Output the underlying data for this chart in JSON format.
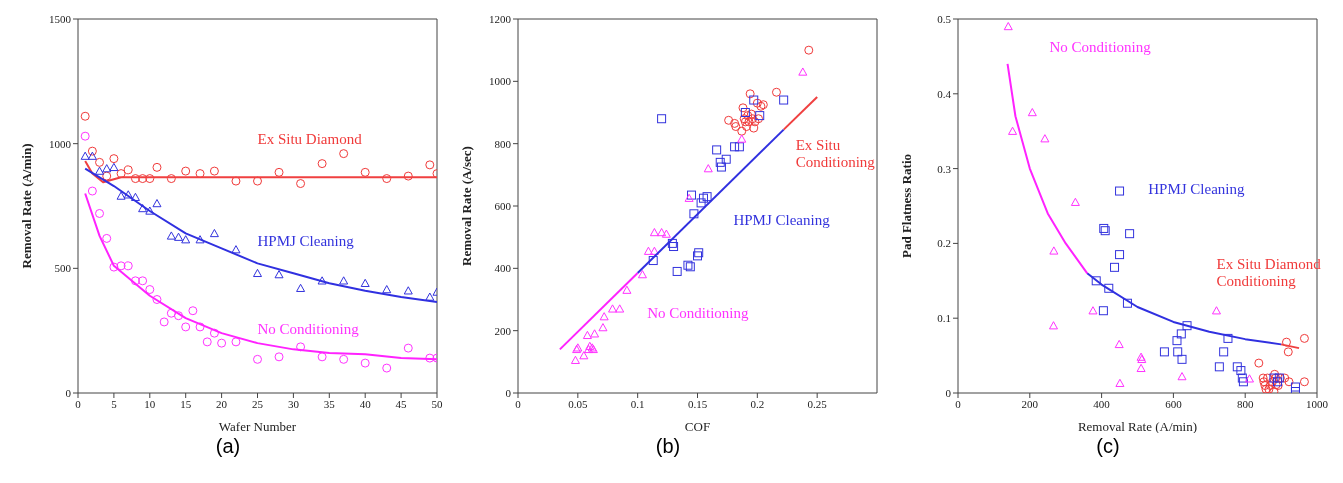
{
  "chart_data": [
    {
      "type": "scatter",
      "title": "(a)",
      "xlabel": "Wafer Number",
      "ylabel": "Removal Rate (A/min)",
      "xlim": [
        0,
        50
      ],
      "xticks": [
        0,
        5,
        10,
        15,
        20,
        25,
        30,
        35,
        40,
        45,
        50
      ],
      "ylim": [
        0,
        1500
      ],
      "yticks": [
        0,
        500,
        1000,
        1500
      ],
      "series": [
        {
          "name": "Ex Situ Diamond",
          "color": "#f03a3a",
          "marker": "circle",
          "x": [
            1,
            2,
            3,
            4,
            5,
            6,
            7,
            8,
            9,
            10,
            11,
            13,
            15,
            17,
            19,
            22,
            25,
            28,
            31,
            34,
            37,
            40,
            43,
            46,
            49,
            50
          ],
          "values": [
            1110,
            970,
            925,
            870,
            940,
            880,
            895,
            860,
            860,
            860,
            905,
            860,
            890,
            880,
            890,
            850,
            850,
            885,
            840,
            920,
            960,
            885,
            860,
            870,
            915,
            880
          ]
        },
        {
          "name": "HPMJ Cleaning",
          "color": "#3333dd",
          "marker": "triangle",
          "x": [
            1,
            2,
            3,
            4,
            5,
            6,
            7,
            8,
            9,
            10,
            11,
            13,
            14,
            15,
            17,
            19,
            22,
            25,
            28,
            31,
            34,
            37,
            40,
            43,
            46,
            49,
            50
          ],
          "values": [
            950,
            950,
            890,
            900,
            905,
            790,
            795,
            785,
            740,
            730,
            760,
            630,
            625,
            615,
            615,
            640,
            575,
            480,
            475,
            420,
            450,
            450,
            440,
            415,
            410,
            385,
            405
          ]
        },
        {
          "name": "No Conditioning",
          "color": "#ff33ff",
          "marker": "circle",
          "x": [
            1,
            2,
            3,
            4,
            5,
            6,
            7,
            8,
            9,
            10,
            11,
            12,
            13,
            14,
            15,
            16,
            17,
            18,
            19,
            20,
            22,
            25,
            28,
            31,
            34,
            37,
            40,
            43,
            46,
            49,
            50
          ],
          "values": [
            1030,
            810,
            720,
            620,
            505,
            510,
            510,
            450,
            450,
            415,
            375,
            285,
            320,
            310,
            265,
            330,
            265,
            205,
            240,
            200,
            205,
            135,
            145,
            185,
            145,
            135,
            120,
            100,
            180,
            140,
            140
          ]
        },
        {
          "type": "line",
          "color": "#f04040",
          "x": [
            1,
            2,
            3.5,
            6,
            10,
            20,
            30,
            40,
            50
          ],
          "values": [
            930,
            880,
            845,
            865,
            865,
            865,
            865,
            865,
            865
          ]
        },
        {
          "type": "line",
          "color": "#3030e0",
          "x": [
            1,
            5,
            10,
            15,
            20,
            25,
            30,
            35,
            40,
            45,
            50
          ],
          "values": [
            900,
            830,
            730,
            640,
            580,
            520,
            480,
            440,
            410,
            385,
            365
          ]
        },
        {
          "type": "line",
          "color": "#ff22ff",
          "x": [
            1,
            3,
            5,
            10,
            15,
            20,
            25,
            30,
            35,
            40,
            45,
            50
          ],
          "values": [
            800,
            630,
            510,
            390,
            300,
            240,
            200,
            175,
            160,
            155,
            140,
            135
          ]
        }
      ]
    },
    {
      "type": "scatter",
      "title": "(b)",
      "xlabel": "COF",
      "ylabel": "Removal Rate (A/sec)",
      "xlim": [
        0,
        0.3
      ],
      "xticks": [
        0,
        0.05,
        0.1,
        0.15,
        0.2,
        0.25
      ],
      "ylim": [
        0,
        1200
      ],
      "yticks": [
        0,
        200,
        400,
        600,
        800,
        1000,
        1200
      ],
      "series": [
        {
          "name": "Ex Situ Conditioning",
          "color": "#f03a3a",
          "marker": "circle",
          "x": [
            0.176,
            0.181,
            0.182,
            0.187,
            0.188,
            0.189,
            0.19,
            0.191,
            0.192,
            0.193,
            0.194,
            0.195,
            0.196,
            0.197,
            0.198,
            0.2,
            0.201,
            0.203,
            0.205,
            0.216,
            0.243
          ],
          "values": [
            875,
            865,
            855,
            840,
            915,
            880,
            870,
            855,
            890,
            870,
            960,
            895,
            880,
            850,
            870,
            930,
            880,
            920,
            925,
            965,
            1100
          ]
        },
        {
          "name": "HPMJ Cleaning",
          "color": "#3333dd",
          "marker": "square",
          "x": [
            0.12,
            0.166,
            0.169,
            0.17,
            0.174,
            0.181,
            0.185,
            0.19,
            0.197,
            0.202,
            0.222,
            0.145,
            0.147,
            0.153,
            0.155,
            0.158,
            0.113,
            0.129,
            0.13,
            0.133,
            0.142,
            0.144,
            0.15,
            0.151
          ],
          "values": [
            880,
            780,
            740,
            725,
            750,
            790,
            790,
            900,
            940,
            890,
            940,
            635,
            575,
            610,
            625,
            630,
            425,
            480,
            470,
            390,
            410,
            405,
            440,
            450
          ]
        },
        {
          "name": "No Conditioning",
          "color": "#ff33ff",
          "marker": "triangle",
          "x": [
            0.048,
            0.049,
            0.05,
            0.055,
            0.058,
            0.059,
            0.06,
            0.062,
            0.063,
            0.064,
            0.071,
            0.072,
            0.079,
            0.085,
            0.091,
            0.104,
            0.109,
            0.114,
            0.114,
            0.12,
            0.124,
            0.143,
            0.159,
            0.187,
            0.238
          ],
          "values": [
            105,
            140,
            145,
            120,
            185,
            140,
            150,
            145,
            140,
            190,
            210,
            245,
            270,
            270,
            330,
            380,
            455,
            455,
            515,
            515,
            510,
            625,
            720,
            815,
            1030
          ]
        },
        {
          "type": "line",
          "color": "#f04040",
          "x": [
            0.222,
            0.25
          ],
          "values": [
            845,
            950
          ]
        },
        {
          "type": "line",
          "color": "#3030e0",
          "x": [
            0.1,
            0.222
          ],
          "values": [
            385,
            845
          ]
        },
        {
          "type": "line",
          "color": "#ff22ff",
          "x": [
            0.035,
            0.1
          ],
          "values": [
            140,
            385
          ]
        }
      ]
    },
    {
      "type": "scatter",
      "title": "(c)",
      "xlabel": "Removal Rate (A/min)",
      "ylabel": "Pad Flatness Ratio",
      "xlim": [
        0,
        1000
      ],
      "xticks": [
        0,
        200,
        400,
        600,
        800,
        1000
      ],
      "ylim": [
        0,
        0.5
      ],
      "yticks": [
        0,
        0.1,
        0.2,
        0.3,
        0.4,
        0.5
      ],
      "series": [
        {
          "name": "Ex Situ Diamond Conditioning",
          "color": "#f03a3a",
          "marker": "circle",
          "x": [
            838,
            850,
            852,
            855,
            858,
            862,
            866,
            870,
            876,
            880,
            882,
            885,
            886,
            892,
            898,
            910,
            915,
            920,
            922,
            965,
            965
          ],
          "values": [
            0.04,
            0.02,
            0.015,
            0.01,
            0.005,
            0.02,
            0.005,
            0.01,
            0.015,
            0.002,
            0.025,
            0.02,
            0.011,
            0.01,
            0.02,
            0.02,
            0.068,
            0.055,
            0.015,
            0.073,
            0.015
          ]
        },
        {
          "name": "HPMJ Cleaning",
          "color": "#3333dd",
          "marker": "square",
          "x": [
            450,
            406,
            410,
            478,
            450,
            436,
            385,
            420,
            405,
            472,
            575,
            610,
            612,
            622,
            624,
            638,
            728,
            740,
            752,
            778,
            788,
            792,
            795,
            880,
            890,
            895,
            940,
            940
          ],
          "values": [
            0.27,
            0.22,
            0.217,
            0.213,
            0.185,
            0.168,
            0.15,
            0.14,
            0.11,
            0.12,
            0.055,
            0.07,
            0.055,
            0.079,
            0.045,
            0.09,
            0.035,
            0.055,
            0.073,
            0.035,
            0.03,
            0.02,
            0.015,
            0.02,
            0.015,
            0.02,
            0.008,
            0.002
          ]
        },
        {
          "name": "No Conditioning",
          "color": "#ff33ff",
          "marker": "triangle",
          "x": [
            140,
            152,
            207,
            242,
            266,
            267,
            327,
            376,
            449,
            451,
            510,
            510,
            512,
            624,
            720,
            812
          ],
          "values": [
            0.49,
            0.35,
            0.375,
            0.34,
            0.09,
            0.19,
            0.255,
            0.11,
            0.065,
            0.013,
            0.048,
            0.033,
            0.045,
            0.022,
            0.11,
            0.019
          ]
        },
        {
          "type": "line",
          "color": "#f04040",
          "x": [
            900,
            950
          ],
          "values": [
            0.065,
            0.06
          ]
        },
        {
          "type": "line",
          "color": "#3030e0",
          "x": [
            360,
            400,
            500,
            600,
            700,
            800,
            900
          ],
          "values": [
            0.16,
            0.145,
            0.115,
            0.095,
            0.082,
            0.072,
            0.065
          ]
        },
        {
          "type": "line",
          "color": "#ff22ff",
          "x": [
            138,
            160,
            200,
            250,
            300,
            360
          ],
          "values": [
            0.44,
            0.37,
            0.3,
            0.24,
            0.2,
            0.16
          ]
        }
      ]
    }
  ]
}
